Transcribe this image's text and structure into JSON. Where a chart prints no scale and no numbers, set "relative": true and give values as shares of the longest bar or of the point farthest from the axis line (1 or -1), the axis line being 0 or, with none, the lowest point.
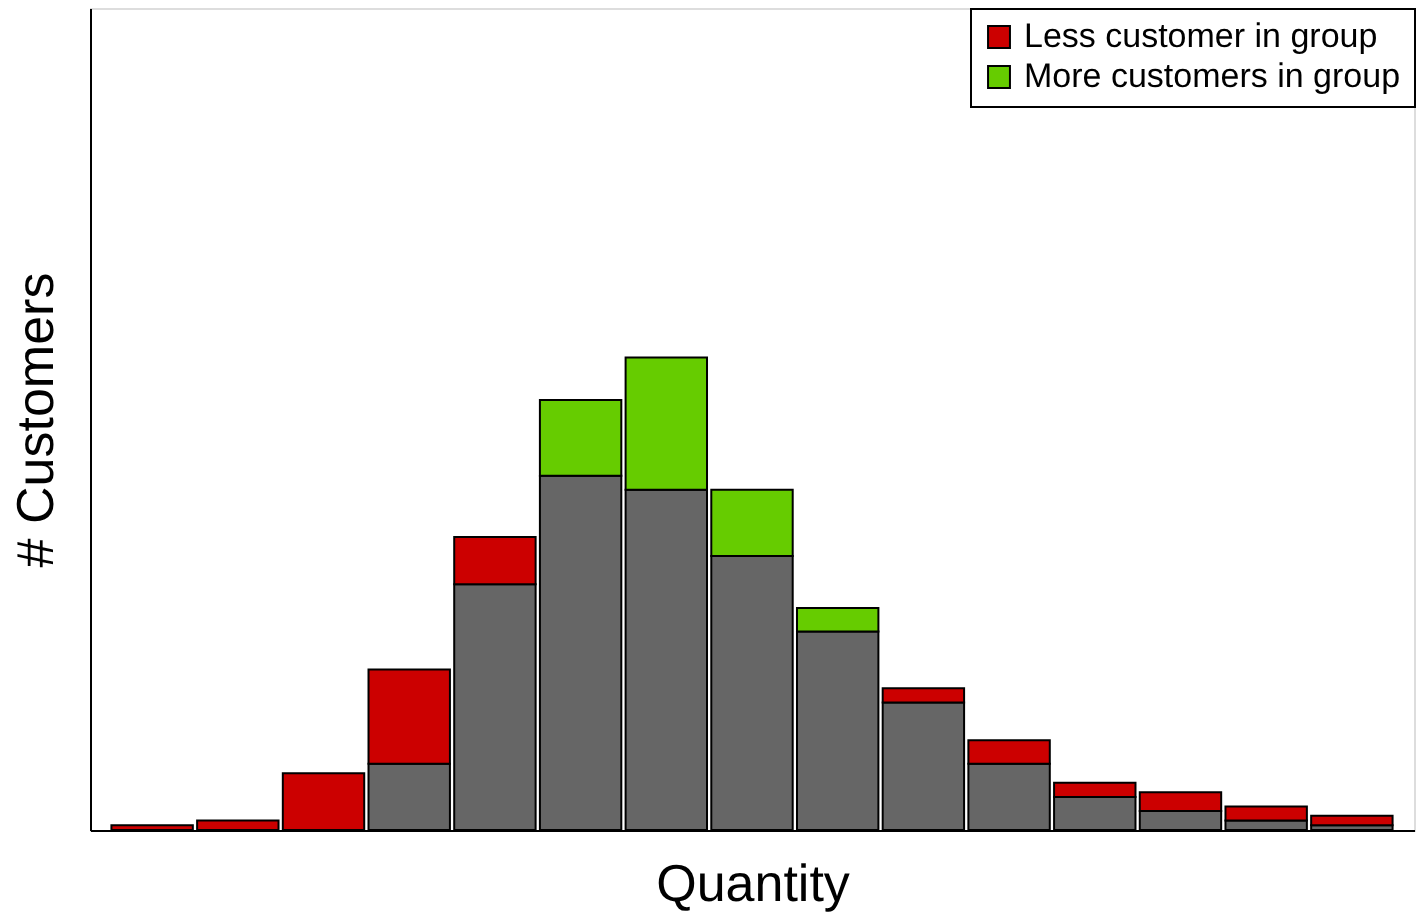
{
  "chart_data": {
    "type": "bar",
    "stacked": true,
    "relative": true,
    "xlabel": "Quantity",
    "ylabel": "# Customers",
    "legend": "top right",
    "grid": false,
    "categories": [
      null,
      null,
      null,
      null,
      null,
      null,
      null,
      null,
      null,
      null,
      null,
      null,
      null,
      null,
      null
    ],
    "series": [
      {
        "color": "#666666",
        "values": [
          0,
          0,
          0,
          0.14,
          0.52,
          0.75,
          0.72,
          0.58,
          0.42,
          0.27,
          0.14,
          0.07,
          0.04,
          0.02,
          0.01
        ]
      },
      {
        "name": "Less customer in group",
        "color": "#cc0000",
        "values": [
          0.01,
          0.02,
          0.12,
          0.2,
          0.1,
          null,
          null,
          null,
          null,
          0.03,
          0.05,
          0.03,
          0.04,
          0.03,
          0.02
        ]
      },
      {
        "name": "More customers in group",
        "color": "#66cc00",
        "values": [
          null,
          null,
          null,
          null,
          null,
          0.16,
          0.28,
          0.14,
          0.05,
          null,
          null,
          null,
          null,
          null,
          null
        ]
      }
    ]
  }
}
